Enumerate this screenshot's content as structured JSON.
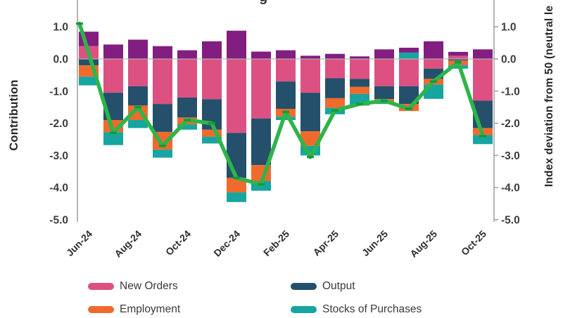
{
  "page": {
    "title_fragment": "g"
  },
  "y_axis_left": {
    "title": "Contribution",
    "ticks": [
      "1.0",
      "0.0",
      "-1.0",
      "-2.0",
      "-3.0",
      "-4.0",
      "-5.0"
    ]
  },
  "y_axis_right": {
    "title": "Index deviation from 50 (neutral le",
    "ticks": [
      "1.0",
      "0.0",
      "-1.0",
      "-2.0",
      "-3.0",
      "-4.0",
      "-5.0"
    ]
  },
  "x_axis": {
    "tick_labels": [
      "Jun-24",
      "Aug-24",
      "Oct-24",
      "Dec-24",
      "Feb-25",
      "Apr-25",
      "Jun-25",
      "Aug-25",
      "Oct-25"
    ]
  },
  "legend": {
    "items": [
      {
        "label": "New Orders",
        "color": "#dc5182"
      },
      {
        "label": "Output",
        "color": "#24506c"
      },
      {
        "label": "Employment",
        "color": "#f16a2d"
      },
      {
        "label": "Stocks of Purchases",
        "color": "#16a5a0"
      }
    ]
  },
  "colors": {
    "line": "#2eb44a",
    "line_marker": "#149638",
    "purple_series": "#811e80",
    "axis": "#9e9e9e",
    "zero_line": "#b3b3b3",
    "tick_text": "#3c3c3c",
    "x_label_text": "#2d2d2d"
  },
  "chart_data": {
    "type": "bar",
    "subtype": "stacked-bars-with-line-overlay",
    "categories": [
      "Jun-24",
      "Jul-24",
      "Aug-24",
      "Sep-24",
      "Oct-24",
      "Nov-24",
      "Dec-24",
      "Jan-25",
      "Feb-25",
      "Mar-25",
      "Apr-25",
      "May-25",
      "Jun-25",
      "Jul-25",
      "Aug-25",
      "Sep-25",
      "Oct-25"
    ],
    "series": [
      {
        "name": "New Orders",
        "color": "#dc5182",
        "values": [
          0.4,
          -1.05,
          -0.85,
          -1.4,
          -1.2,
          -1.25,
          -2.3,
          -1.85,
          -0.7,
          -1.05,
          -0.6,
          -0.62,
          -0.85,
          -0.85,
          -0.3,
          0.1,
          -1.3
        ]
      },
      {
        "name": "Output",
        "color": "#24506c",
        "values": [
          -0.2,
          -0.85,
          -0.6,
          -0.87,
          -0.62,
          -0.95,
          -1.4,
          -1.45,
          -0.85,
          -1.2,
          -0.62,
          -0.25,
          -0.4,
          -0.55,
          -0.32,
          -0.05,
          -0.85
        ]
      },
      {
        "name": "Employment",
        "color": "#f16a2d",
        "values": [
          -0.35,
          -0.38,
          -0.45,
          -0.55,
          -0.22,
          -0.22,
          -0.45,
          -0.5,
          -0.25,
          -0.45,
          -0.3,
          -0.22,
          -0.08,
          -0.22,
          -0.18,
          -0.15,
          -0.22
        ]
      },
      {
        "name": "Stocks of Purchases",
        "color": "#16a5a0",
        "values": [
          -0.27,
          -0.4,
          -0.25,
          -0.25,
          -0.16,
          -0.21,
          -0.3,
          -0.3,
          -0.1,
          -0.3,
          -0.2,
          -0.36,
          -0.07,
          0.2,
          -0.44,
          -0.1,
          -0.28
        ]
      },
      {
        "name": "(unlabeled purple segment)",
        "color": "#811e80",
        "values": [
          0.45,
          0.45,
          0.6,
          0.4,
          0.27,
          0.55,
          0.88,
          0.23,
          0.27,
          0.1,
          0.16,
          0.08,
          0.3,
          0.15,
          0.55,
          0.12,
          0.3
        ]
      }
    ],
    "line": {
      "name": "Index deviation from 50",
      "color": "#2eb44a",
      "values": [
        1.1,
        -2.3,
        -1.5,
        -2.7,
        -1.9,
        -2.0,
        -3.7,
        -3.9,
        -1.65,
        -3.05,
        -1.6,
        -1.4,
        -1.3,
        -1.55,
        -0.7,
        -0.1,
        -2.4
      ]
    },
    "ylabel_left": "Contribution",
    "ylabel_right": "Index deviation from 50 (neutral le",
    "ylim": [
      -5.0,
      1.5
    ],
    "grid": false,
    "legend_position": "bottom"
  }
}
